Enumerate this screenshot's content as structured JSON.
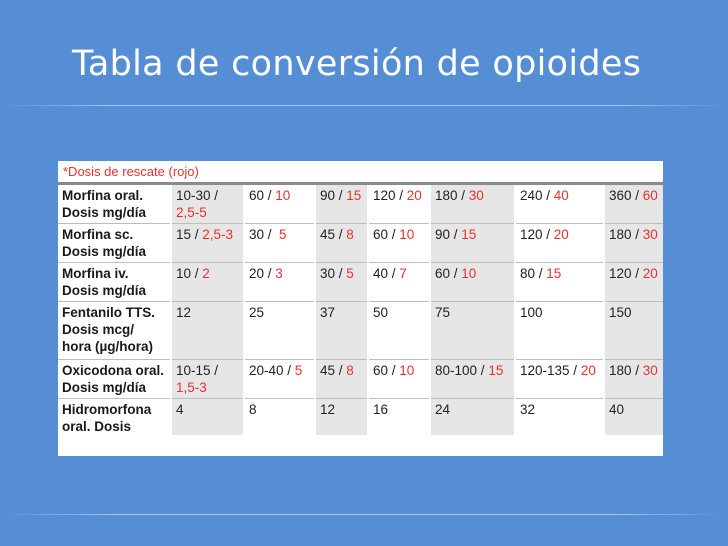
{
  "slide": {
    "title": "Tabla de conversión de opioides"
  },
  "table": {
    "caption": "*Dosis de rescate (rojo)",
    "rows": [
      {
        "label_lines": [
          "Morfina oral.",
          "Dosis mg/día"
        ],
        "cells": [
          {
            "lines": [
              {
                "dose": "10-30",
                "sep": " /",
                "rescue": ""
              },
              {
                "dose": "",
                "sep": "",
                "rescue": "2,5-5"
              }
            ]
          },
          {
            "lines": [
              {
                "dose": "60",
                "sep": " / ",
                "rescue": "10"
              }
            ]
          },
          {
            "lines": [
              {
                "dose": "90",
                "sep": " / ",
                "rescue": "15"
              }
            ]
          },
          {
            "lines": [
              {
                "dose": "120",
                "sep": " / ",
                "rescue": "20"
              }
            ]
          },
          {
            "lines": [
              {
                "dose": "180",
                "sep": " / ",
                "rescue": "30"
              }
            ]
          },
          {
            "lines": [
              {
                "dose": "240",
                "sep": " / ",
                "rescue": "40"
              }
            ]
          },
          {
            "lines": [
              {
                "dose": "360",
                "sep": " / ",
                "rescue": "60"
              }
            ]
          }
        ]
      },
      {
        "label_lines": [
          "Morfina sc.",
          "Dosis mg/día"
        ],
        "cells": [
          {
            "lines": [
              {
                "dose": "15",
                "sep": " / ",
                "rescue": "2,5-3"
              }
            ]
          },
          {
            "lines": [
              {
                "dose": "30",
                "sep": " /  ",
                "rescue": "5"
              }
            ]
          },
          {
            "lines": [
              {
                "dose": "45",
                "sep": " / ",
                "rescue": "8"
              }
            ]
          },
          {
            "lines": [
              {
                "dose": "60",
                "sep": " / ",
                "rescue": "10"
              }
            ]
          },
          {
            "lines": [
              {
                "dose": "90",
                "sep": " / ",
                "rescue": "15"
              }
            ]
          },
          {
            "lines": [
              {
                "dose": "120",
                "sep": " / ",
                "rescue": "20"
              }
            ]
          },
          {
            "lines": [
              {
                "dose": "180",
                "sep": " / ",
                "rescue": "30"
              }
            ]
          }
        ]
      },
      {
        "label_lines": [
          "Morfina iv.",
          "Dosis mg/día"
        ],
        "cells": [
          {
            "lines": [
              {
                "dose": "10",
                "sep": " / ",
                "rescue": "2"
              }
            ]
          },
          {
            "lines": [
              {
                "dose": "20",
                "sep": " / ",
                "rescue": "3"
              }
            ]
          },
          {
            "lines": [
              {
                "dose": "30",
                "sep": " / ",
                "rescue": "5"
              }
            ]
          },
          {
            "lines": [
              {
                "dose": "40",
                "sep": " / ",
                "rescue": "7"
              }
            ]
          },
          {
            "lines": [
              {
                "dose": "60",
                "sep": " / ",
                "rescue": "10"
              }
            ]
          },
          {
            "lines": [
              {
                "dose": "80",
                "sep": " / ",
                "rescue": "15"
              }
            ]
          },
          {
            "lines": [
              {
                "dose": "120",
                "sep": " / ",
                "rescue": "20"
              }
            ]
          }
        ]
      },
      {
        "label_lines": [
          "Fentanilo TTS.",
          "Dosis mcg/",
          "hora (µg/hora)"
        ],
        "cells": [
          {
            "lines": [
              {
                "dose": "12",
                "sep": "",
                "rescue": ""
              }
            ]
          },
          {
            "lines": [
              {
                "dose": "25",
                "sep": "",
                "rescue": ""
              }
            ]
          },
          {
            "lines": [
              {
                "dose": "37",
                "sep": "",
                "rescue": ""
              }
            ]
          },
          {
            "lines": [
              {
                "dose": "50",
                "sep": "",
                "rescue": ""
              }
            ]
          },
          {
            "lines": [
              {
                "dose": "75",
                "sep": "",
                "rescue": ""
              }
            ]
          },
          {
            "lines": [
              {
                "dose": "100",
                "sep": "",
                "rescue": ""
              }
            ]
          },
          {
            "lines": [
              {
                "dose": "150",
                "sep": "",
                "rescue": ""
              }
            ]
          }
        ]
      },
      {
        "label_lines": [
          "Oxicodona oral.",
          "Dosis mg/día"
        ],
        "cells": [
          {
            "lines": [
              {
                "dose": "10-15",
                "sep": " /",
                "rescue": ""
              },
              {
                "dose": "",
                "sep": "",
                "rescue": "1,5-3"
              }
            ]
          },
          {
            "lines": [
              {
                "dose": "20-40",
                "sep": " / ",
                "rescue": "5"
              }
            ]
          },
          {
            "lines": [
              {
                "dose": "45",
                "sep": " / ",
                "rescue": "8"
              }
            ]
          },
          {
            "lines": [
              {
                "dose": "60",
                "sep": " / ",
                "rescue": "10"
              }
            ]
          },
          {
            "lines": [
              {
                "dose": "80-100",
                "sep": " / ",
                "rescue": "15"
              }
            ]
          },
          {
            "lines": [
              {
                "dose": "120-135",
                "sep": " / ",
                "rescue": "20"
              }
            ]
          },
          {
            "lines": [
              {
                "dose": "180",
                "sep": " / ",
                "rescue": "30"
              }
            ]
          }
        ]
      },
      {
        "label_lines": [
          "Hidromorfona",
          "oral. Dosis"
        ],
        "cells": [
          {
            "lines": [
              {
                "dose": "4",
                "sep": "",
                "rescue": ""
              }
            ]
          },
          {
            "lines": [
              {
                "dose": "8",
                "sep": "",
                "rescue": ""
              }
            ]
          },
          {
            "lines": [
              {
                "dose": "12",
                "sep": "",
                "rescue": ""
              }
            ]
          },
          {
            "lines": [
              {
                "dose": "16",
                "sep": "",
                "rescue": ""
              }
            ]
          },
          {
            "lines": [
              {
                "dose": "24",
                "sep": "",
                "rescue": ""
              }
            ]
          },
          {
            "lines": [
              {
                "dose": "32",
                "sep": "",
                "rescue": ""
              }
            ]
          },
          {
            "lines": [
              {
                "dose": "40",
                "sep": "",
                "rescue": ""
              }
            ]
          }
        ]
      }
    ]
  }
}
